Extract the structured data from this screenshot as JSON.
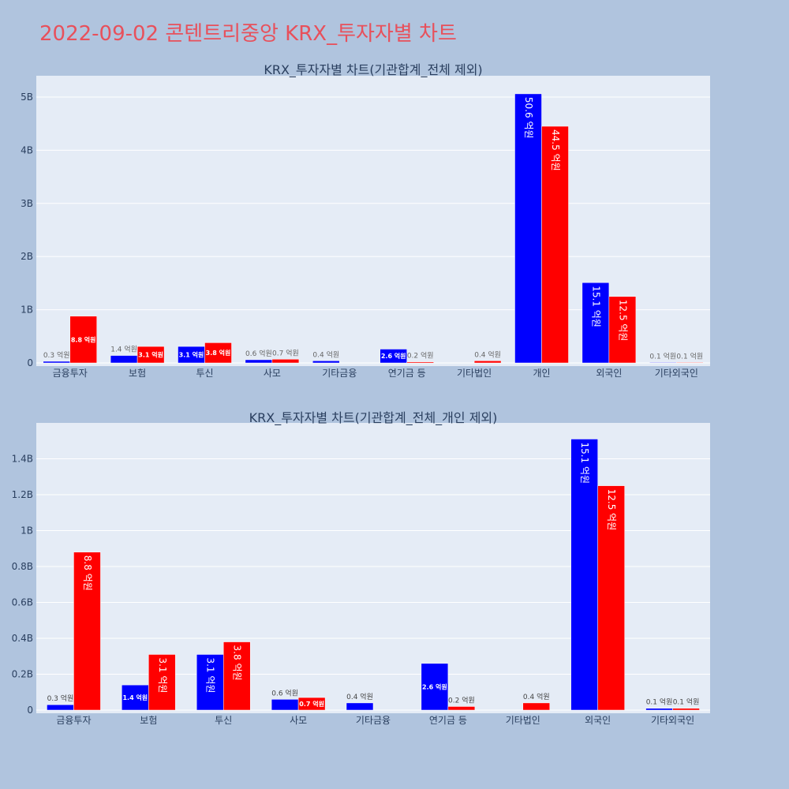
{
  "title": "2022-09-02 콘텐트리중앙 KRX_투자자별 차트",
  "colors": {
    "buy": "#0000ff",
    "sell": "#ff0000",
    "plot_bg": "#e5ecf6",
    "page_bg": "#b0c4de",
    "title": "#e8505b"
  },
  "chart_data": [
    {
      "type": "bar",
      "title": "KRX_투자자별 차트(기관합계_전체 제외)",
      "categories": [
        "금융투자",
        "보험",
        "투신",
        "사모",
        "기타금융",
        "연기금 등",
        "기타법인",
        "개인",
        "외국인",
        "기타외국인"
      ],
      "series": [
        {
          "values": [
            0.03,
            0.14,
            0.31,
            0.06,
            0.04,
            0.26,
            0,
            5.06,
            1.51,
            0.01
          ],
          "labels": [
            "0.3 억원",
            "1.4 억원",
            "3.1 억원",
            "0.6 억원",
            "0.4 억원",
            "2.6 억원",
            "",
            "50.6 억원",
            "15.1 억원",
            "0.1 억원"
          ]
        },
        {
          "values": [
            0.88,
            0.31,
            0.38,
            0.07,
            0,
            0.02,
            0.04,
            4.45,
            1.25,
            0.01
          ],
          "labels": [
            "8.8 억원",
            "3.1 억원",
            "3.8 억원",
            "0.7 억원",
            "",
            "0.2 억원",
            "0.4 억원",
            "44.5 억원",
            "12.5 억원",
            "0.1 억원"
          ]
        }
      ],
      "ylim": [
        0,
        5.4
      ],
      "yticks": [
        0,
        1,
        2,
        3,
        4,
        5
      ],
      "ytick_labels": [
        "0",
        "1B",
        "2B",
        "3B",
        "4B",
        "5B"
      ]
    },
    {
      "type": "bar",
      "title": "KRX_투자자별 차트(기관합계_전체_개인 제외)",
      "categories": [
        "금융투자",
        "보험",
        "투신",
        "사모",
        "기타금융",
        "연기금 등",
        "기타법인",
        "외국인",
        "기타외국인"
      ],
      "series": [
        {
          "values": [
            0.03,
            0.14,
            0.31,
            0.06,
            0.04,
            0.26,
            0,
            1.51,
            0.01
          ],
          "labels": [
            "0.3 억원",
            "1.4 억원",
            "3.1 억원",
            "0.6 억원",
            "0.4 억원",
            "2.6 억원",
            "",
            "15.1 억원",
            "0.1 억원"
          ]
        },
        {
          "values": [
            0.88,
            0.31,
            0.38,
            0.07,
            0,
            0.02,
            0.04,
            1.25,
            0.01
          ],
          "labels": [
            "8.8 억원",
            "3.1 억원",
            "3.8 억원",
            "0.7 억원",
            "",
            "0.2 억원",
            "0.4 억원",
            "12.5 억원",
            "0.1 억원"
          ]
        }
      ],
      "ylim": [
        0,
        1.6
      ],
      "yticks": [
        0,
        0.2,
        0.4,
        0.6,
        0.8,
        1,
        1.2,
        1.4
      ],
      "ytick_labels": [
        "0",
        "0.2B",
        "0.4B",
        "0.6B",
        "0.8B",
        "1B",
        "1.2B",
        "1.4B"
      ]
    }
  ]
}
